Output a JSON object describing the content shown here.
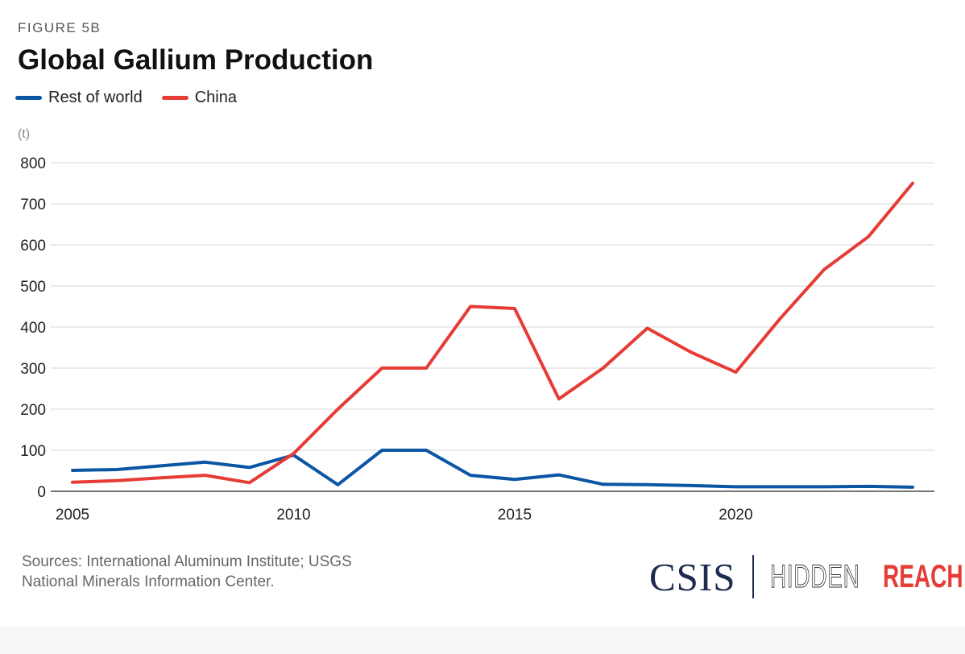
{
  "header": {
    "figure_label": "FIGURE 5B",
    "title": "Global Gallium Production",
    "unit": "(t)"
  },
  "legend": {
    "rest_of_world": "Rest of world",
    "china": "China"
  },
  "footer": {
    "sources_line1": "Sources: International Aluminum Institute; USGS",
    "sources_line2": "National Minerals Information Center.",
    "logo_csis": "CSIS",
    "logo_hidden": "HIDDEN",
    "logo_reach": "REACH"
  },
  "chart_data": {
    "type": "line",
    "title": "Global Gallium Production",
    "xlabel": "",
    "ylabel": "(t)",
    "ylim": [
      0,
      800
    ],
    "yticks": [
      0,
      100,
      200,
      300,
      400,
      500,
      600,
      700,
      800
    ],
    "xticks": [
      2005,
      2010,
      2015,
      2020
    ],
    "grid": true,
    "legend_position": "top-left",
    "x": [
      2005,
      2006,
      2007,
      2008,
      2009,
      2010,
      2011,
      2012,
      2013,
      2014,
      2015,
      2016,
      2017,
      2018,
      2019,
      2020,
      2021,
      2022,
      2023,
      2024
    ],
    "series": [
      {
        "name": "Rest of world",
        "color": "#0b56a4",
        "values": [
          51,
          53,
          62,
          71,
          58,
          88,
          16,
          100,
          100,
          39,
          29,
          40,
          17,
          16,
          14,
          11,
          11,
          11,
          12,
          10
        ]
      },
      {
        "name": "China",
        "color": "#e63c36",
        "values": [
          22,
          26,
          33,
          39,
          21,
          92,
          200,
          300,
          300,
          450,
          445,
          225,
          300,
          397,
          338,
          290,
          420,
          540,
          620,
          750
        ]
      }
    ]
  }
}
